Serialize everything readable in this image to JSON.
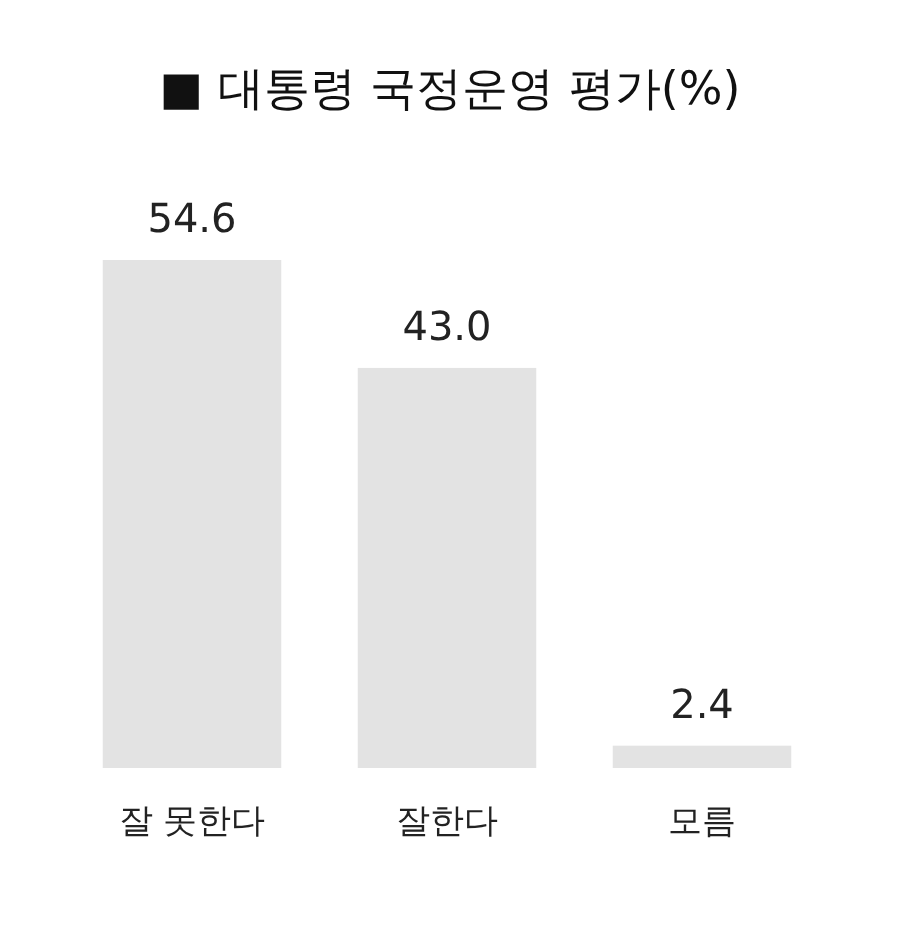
{
  "chart_data": {
    "type": "bar",
    "title": "■ 대통령 국정운영 평가(%)",
    "categories": [
      "잘 못한다",
      "잘한다",
      "모름"
    ],
    "values": [
      54.6,
      43.0,
      2.4
    ],
    "color": "#e3e3e3",
    "value_labels": [
      "54.6",
      "43.0",
      "2.4"
    ]
  }
}
